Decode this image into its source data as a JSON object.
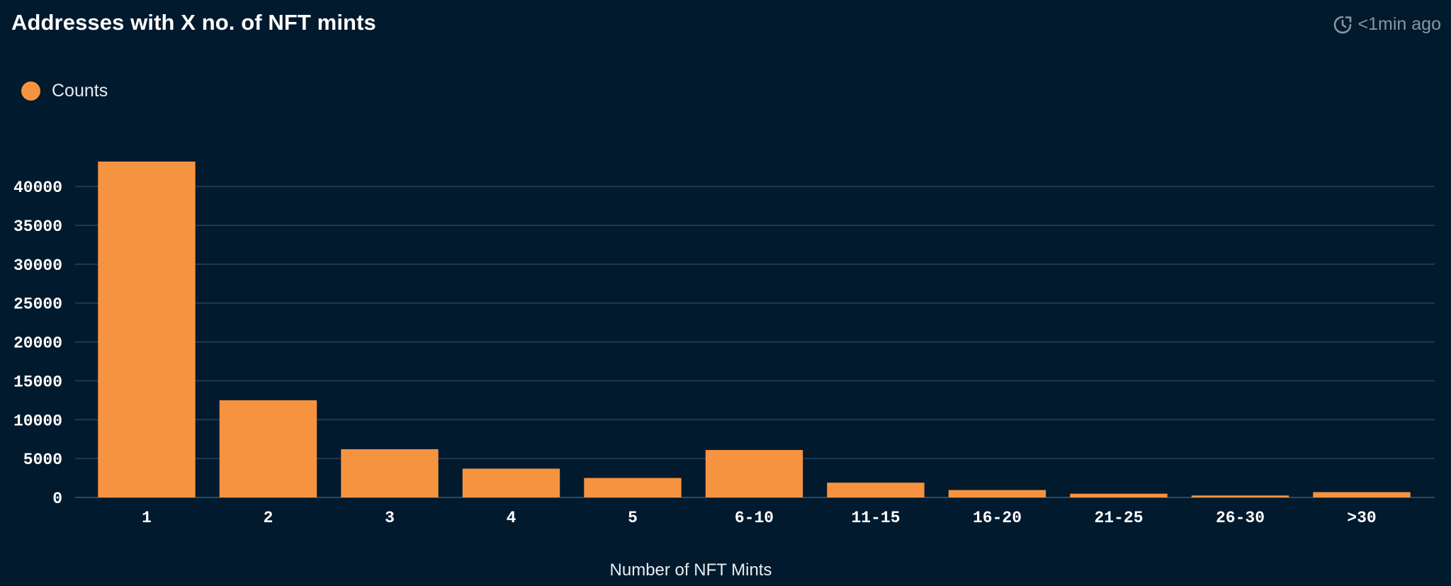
{
  "header": {
    "title": "Addresses with X no. of NFT mints",
    "refresh_text": "<1min ago"
  },
  "colors": {
    "background": "#011a2d",
    "bar": "#f69340",
    "grid": "#1b3a55"
  },
  "chart_data": {
    "type": "bar",
    "title": "Addresses with X no. of NFT mints",
    "xlabel": "Number of NFT Mints",
    "ylabel": "",
    "categories": [
      "1",
      "2",
      "3",
      "4",
      "5",
      "6-10",
      "11-15",
      "16-20",
      "21-25",
      "26-30",
      ">30"
    ],
    "series": [
      {
        "name": "Counts",
        "values": [
          43200,
          12500,
          6200,
          3700,
          2500,
          6100,
          1900,
          950,
          480,
          250,
          680
        ]
      }
    ],
    "yticks": [
      0,
      5000,
      10000,
      15000,
      20000,
      25000,
      30000,
      35000,
      40000
    ],
    "ylim": [
      0,
      43200
    ],
    "grid": true,
    "legend_position": "top-left"
  }
}
